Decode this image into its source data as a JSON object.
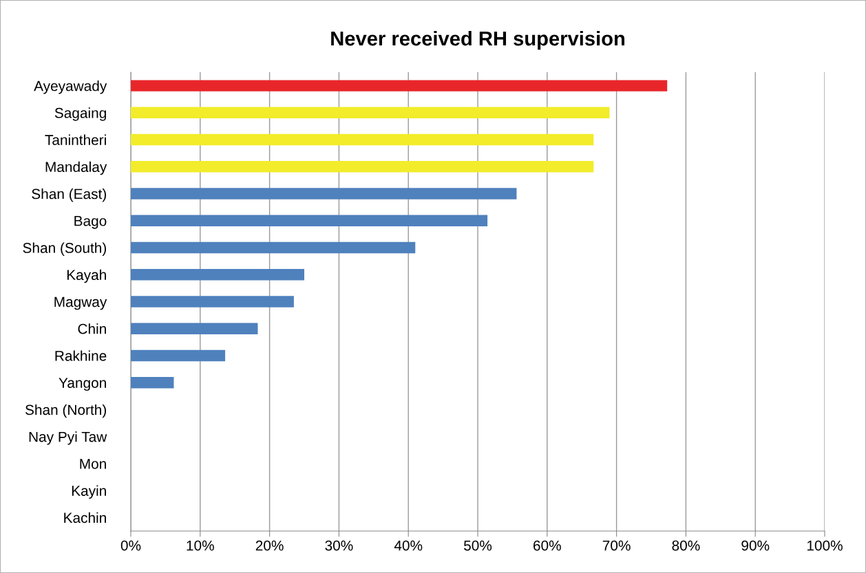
{
  "chart_data": {
    "type": "bar",
    "orientation": "horizontal",
    "title": "Never received RH supervision",
    "categories": [
      "Ayeyawady",
      "Sagaing",
      "Tanintheri",
      "Mandalay",
      "Shan (East)",
      "Bago",
      "Shan (South)",
      "Kayah",
      "Magway",
      "Chin",
      "Rakhine",
      "Yangon",
      "Shan (North)",
      "Nay Pyi Taw",
      "Mon",
      "Kayin",
      "Kachin"
    ],
    "values": [
      77.3,
      69.0,
      66.7,
      66.7,
      55.6,
      51.4,
      41.0,
      25.0,
      23.5,
      18.3,
      13.6,
      6.2,
      0,
      0,
      0,
      0,
      0
    ],
    "colors": [
      "#e8262a",
      "#f2ec2a",
      "#f2ec2a",
      "#f2ec2a",
      "#4f81bd",
      "#4f81bd",
      "#4f81bd",
      "#4f81bd",
      "#4f81bd",
      "#4f81bd",
      "#4f81bd",
      "#4f81bd",
      "#4f81bd",
      "#4f81bd",
      "#4f81bd",
      "#4f81bd",
      "#4f81bd"
    ],
    "xlim": [
      0,
      100
    ],
    "xticks": [
      {
        "value": 0,
        "label": "0%"
      },
      {
        "value": 10,
        "label": "10%"
      },
      {
        "value": 20,
        "label": "20%"
      },
      {
        "value": 30,
        "label": "30%"
      },
      {
        "value": 40,
        "label": "40%"
      },
      {
        "value": 50,
        "label": "50%"
      },
      {
        "value": 60,
        "label": "60%"
      },
      {
        "value": 70,
        "label": "70%"
      },
      {
        "value": 80,
        "label": "80%"
      },
      {
        "value": 90,
        "label": "90%"
      },
      {
        "value": 100,
        "label": "100%"
      }
    ],
    "grid": "x"
  }
}
